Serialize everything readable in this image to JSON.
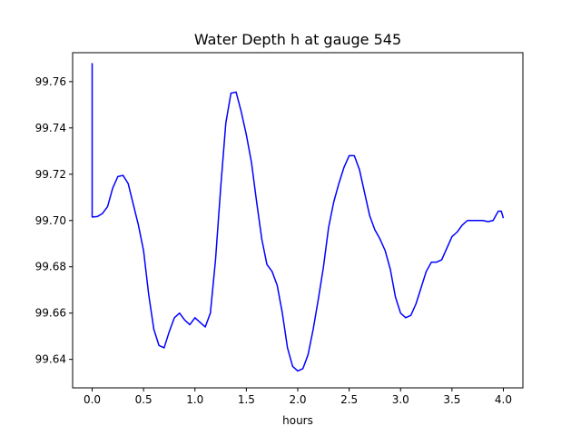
{
  "chart_data": {
    "type": "line",
    "title": "Water Depth h at gauge 545",
    "xlabel": "hours",
    "ylabel": "",
    "xlim": [
      -0.19,
      4.19
    ],
    "ylim": [
      99.6277,
      99.7725
    ],
    "xticks": [
      0.0,
      0.5,
      1.0,
      1.5,
      2.0,
      2.5,
      3.0,
      3.5,
      4.0
    ],
    "xtick_labels": [
      "0.0",
      "0.5",
      "1.0",
      "1.5",
      "2.0",
      "2.5",
      "3.0",
      "3.5",
      "4.0"
    ],
    "yticks": [
      99.64,
      99.66,
      99.68,
      99.7,
      99.72,
      99.74,
      99.76
    ],
    "ytick_labels": [
      "99.64",
      "99.66",
      "99.68",
      "99.70",
      "99.72",
      "99.74",
      "99.76"
    ],
    "grid": false,
    "series": [
      {
        "color": "#0000ff",
        "x": [
          0.0,
          0.0,
          0.005,
          0.05,
          0.1,
          0.15,
          0.2,
          0.25,
          0.3,
          0.35,
          0.4,
          0.45,
          0.5,
          0.55,
          0.6,
          0.65,
          0.7,
          0.75,
          0.8,
          0.85,
          0.9,
          0.95,
          1.0,
          1.05,
          1.1,
          1.15,
          1.2,
          1.25,
          1.3,
          1.35,
          1.4,
          1.45,
          1.5,
          1.55,
          1.6,
          1.65,
          1.7,
          1.75,
          1.8,
          1.85,
          1.9,
          1.95,
          2.0,
          2.05,
          2.1,
          2.15,
          2.2,
          2.25,
          2.3,
          2.35,
          2.4,
          2.45,
          2.5,
          2.55,
          2.6,
          2.65,
          2.7,
          2.75,
          2.8,
          2.85,
          2.9,
          2.95,
          3.0,
          3.05,
          3.1,
          3.15,
          3.2,
          3.25,
          3.3,
          3.35,
          3.4,
          3.45,
          3.5,
          3.55,
          3.6,
          3.65,
          3.7,
          3.75,
          3.8,
          3.85,
          3.9,
          3.95,
          3.98,
          4.0
        ],
        "y": [
          99.768,
          99.7015,
          99.7015,
          99.7017,
          99.703,
          99.706,
          99.714,
          99.719,
          99.7195,
          99.716,
          99.707,
          99.698,
          99.687,
          99.668,
          99.653,
          99.646,
          99.645,
          99.652,
          99.658,
          99.66,
          99.657,
          99.655,
          99.658,
          99.656,
          99.654,
          99.66,
          99.683,
          99.714,
          99.742,
          99.755,
          99.7555,
          99.747,
          99.737,
          99.725,
          99.708,
          99.692,
          99.681,
          99.678,
          99.672,
          99.66,
          99.645,
          99.637,
          99.635,
          99.636,
          99.642,
          99.653,
          99.666,
          99.68,
          99.697,
          99.708,
          99.716,
          99.723,
          99.728,
          99.728,
          99.722,
          99.712,
          99.702,
          99.696,
          99.692,
          99.687,
          99.679,
          99.667,
          99.66,
          99.658,
          99.659,
          99.664,
          99.671,
          99.678,
          99.682,
          99.682,
          99.683,
          99.688,
          99.693,
          99.695,
          99.698,
          99.7,
          99.7,
          99.7,
          99.7,
          99.6995,
          99.7,
          99.704,
          99.704,
          99.701
        ]
      }
    ]
  }
}
